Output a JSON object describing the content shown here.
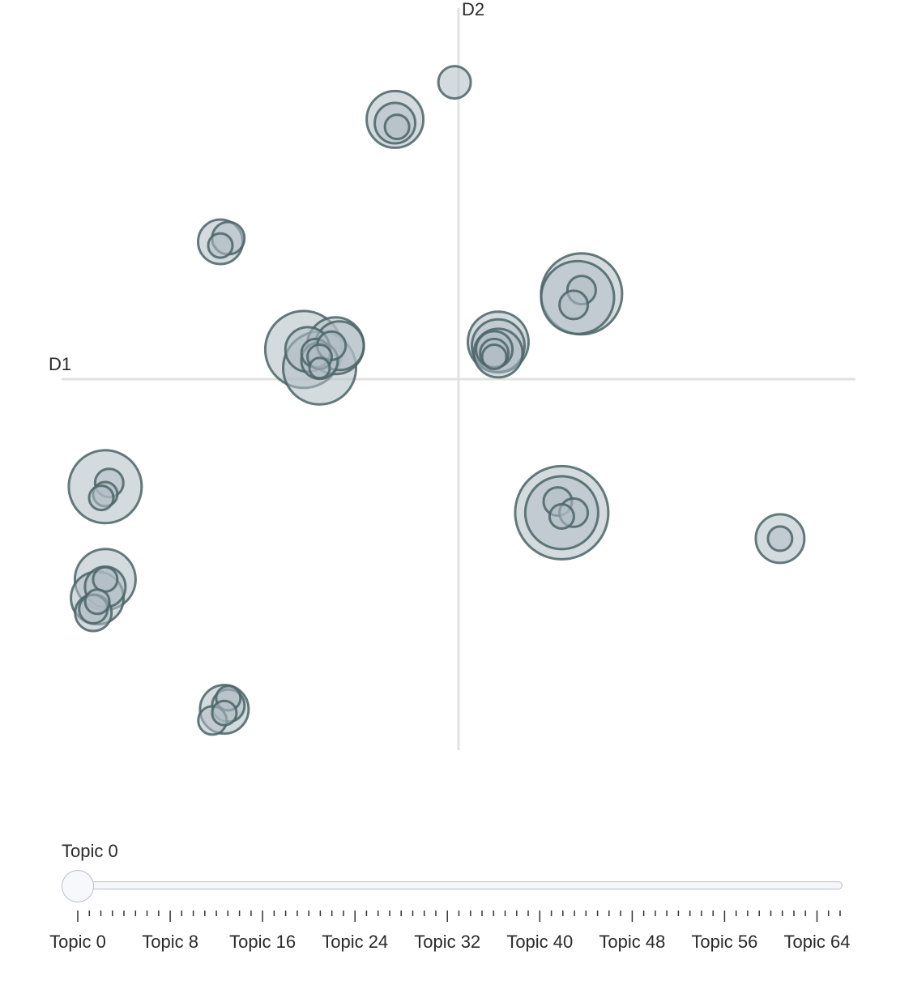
{
  "chart_data": {
    "type": "scatter",
    "title": "",
    "xlabel": "D1",
    "ylabel": "D2",
    "xlim": [
      -1,
      1
    ],
    "ylim": [
      -1,
      1
    ],
    "grid": false,
    "marker": "bubble",
    "colors": {
      "fill": "#b0bec5",
      "stroke": "#4a6466",
      "axis": "#e2e2e2"
    },
    "points": [
      {
        "x": -0.01,
        "y": 0.8,
        "size": 0.4
      },
      {
        "x": -0.16,
        "y": 0.7,
        "size": 0.7
      },
      {
        "x": -0.16,
        "y": 0.69,
        "size": 0.5
      },
      {
        "x": -0.155,
        "y": 0.68,
        "size": 0.3
      },
      {
        "x": -0.6,
        "y": 0.37,
        "size": 0.55
      },
      {
        "x": -0.58,
        "y": 0.38,
        "size": 0.4
      },
      {
        "x": -0.6,
        "y": 0.36,
        "size": 0.3
      },
      {
        "x": 0.31,
        "y": 0.23,
        "size": 1.0
      },
      {
        "x": 0.3,
        "y": 0.22,
        "size": 0.9
      },
      {
        "x": 0.31,
        "y": 0.24,
        "size": 0.35
      },
      {
        "x": 0.29,
        "y": 0.2,
        "size": 0.35
      },
      {
        "x": -0.39,
        "y": 0.08,
        "size": 0.95
      },
      {
        "x": -0.35,
        "y": 0.03,
        "size": 0.9
      },
      {
        "x": -0.31,
        "y": 0.09,
        "size": 0.7
      },
      {
        "x": -0.3,
        "y": 0.09,
        "size": 0.6
      },
      {
        "x": -0.38,
        "y": 0.08,
        "size": 0.55
      },
      {
        "x": -0.35,
        "y": 0.05,
        "size": 0.45
      },
      {
        "x": -0.36,
        "y": 0.07,
        "size": 0.35
      },
      {
        "x": -0.32,
        "y": 0.09,
        "size": 0.35
      },
      {
        "x": -0.35,
        "y": 0.06,
        "size": 0.3
      },
      {
        "x": -0.35,
        "y": 0.03,
        "size": 0.25
      },
      {
        "x": 0.1,
        "y": 0.1,
        "size": 0.75
      },
      {
        "x": 0.1,
        "y": 0.09,
        "size": 0.65
      },
      {
        "x": 0.1,
        "y": 0.07,
        "size": 0.6
      },
      {
        "x": 0.09,
        "y": 0.08,
        "size": 0.45
      },
      {
        "x": 0.09,
        "y": 0.07,
        "size": 0.35
      },
      {
        "x": 0.09,
        "y": 0.06,
        "size": 0.3
      },
      {
        "x": -0.89,
        "y": -0.29,
        "size": 0.9
      },
      {
        "x": -0.88,
        "y": -0.28,
        "size": 0.35
      },
      {
        "x": -0.89,
        "y": -0.31,
        "size": 0.3
      },
      {
        "x": -0.9,
        "y": -0.32,
        "size": 0.3
      },
      {
        "x": 0.26,
        "y": -0.36,
        "size": 1.15
      },
      {
        "x": 0.26,
        "y": -0.36,
        "size": 0.9
      },
      {
        "x": 0.25,
        "y": -0.33,
        "size": 0.35
      },
      {
        "x": 0.29,
        "y": -0.36,
        "size": 0.35
      },
      {
        "x": 0.26,
        "y": -0.37,
        "size": 0.3
      },
      {
        "x": 0.81,
        "y": -0.43,
        "size": 0.6
      },
      {
        "x": 0.81,
        "y": -0.43,
        "size": 0.3
      },
      {
        "x": -0.89,
        "y": -0.54,
        "size": 0.75
      },
      {
        "x": -0.91,
        "y": -0.59,
        "size": 0.65
      },
      {
        "x": -0.89,
        "y": -0.56,
        "size": 0.5
      },
      {
        "x": -0.92,
        "y": -0.63,
        "size": 0.45
      },
      {
        "x": -0.92,
        "y": -0.62,
        "size": 0.35
      },
      {
        "x": -0.89,
        "y": -0.54,
        "size": 0.3
      },
      {
        "x": -0.91,
        "y": -0.6,
        "size": 0.3
      },
      {
        "x": -0.59,
        "y": -0.89,
        "size": 0.6
      },
      {
        "x": -0.58,
        "y": -0.88,
        "size": 0.4
      },
      {
        "x": -0.62,
        "y": -0.92,
        "size": 0.35
      },
      {
        "x": -0.58,
        "y": -0.86,
        "size": 0.3
      },
      {
        "x": -0.59,
        "y": -0.9,
        "size": 0.3
      }
    ]
  },
  "slider": {
    "current_label": "Topic 0",
    "value": 0,
    "min": 0,
    "max": 66,
    "tick_labels": [
      "Topic 0",
      "Topic 8",
      "Topic 16",
      "Topic 24",
      "Topic 32",
      "Topic 40",
      "Topic 48",
      "Topic 56",
      "Topic 64"
    ],
    "tick_values": [
      0,
      8,
      16,
      24,
      32,
      40,
      48,
      56,
      64
    ]
  }
}
